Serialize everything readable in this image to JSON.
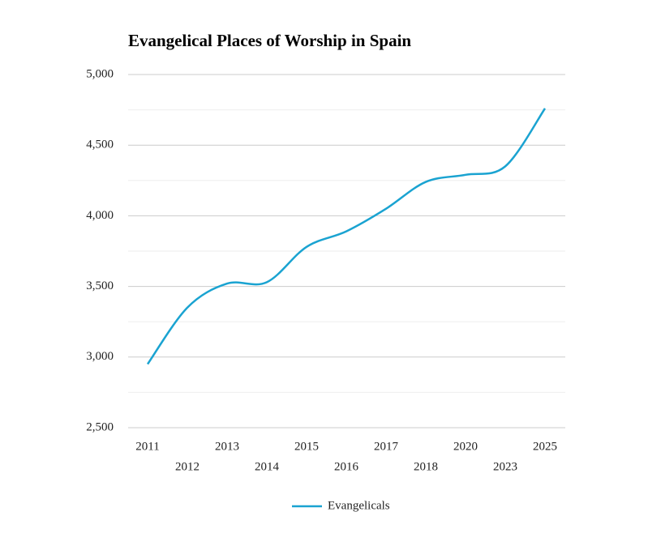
{
  "chart_data": {
    "type": "line",
    "title": "Evangelical Places of Worship in Spain",
    "categories": [
      "2011",
      "2012",
      "2013",
      "2014",
      "2015",
      "2016",
      "2017",
      "2018",
      "2020",
      "2023",
      "2025"
    ],
    "series": [
      {
        "name": "Evangelicals",
        "color": "#1aa3d1",
        "values": [
          2950,
          3350,
          3520,
          3530,
          3780,
          3890,
          4050,
          4240,
          4290,
          4350,
          4760
        ]
      }
    ],
    "ylim": [
      2500,
      5000
    ],
    "yticks": [
      {
        "value": 2500,
        "label": "2,500"
      },
      {
        "value": 3000,
        "label": "3,000"
      },
      {
        "value": 3500,
        "label": "3,500"
      },
      {
        "value": 4000,
        "label": "4,000"
      },
      {
        "value": 4500,
        "label": "4,500"
      },
      {
        "value": 5000,
        "label": "5,000"
      }
    ],
    "minor_yticks": [
      2750,
      3250,
      3750,
      4250,
      4750
    ],
    "grid": true,
    "legend": "bottom"
  }
}
